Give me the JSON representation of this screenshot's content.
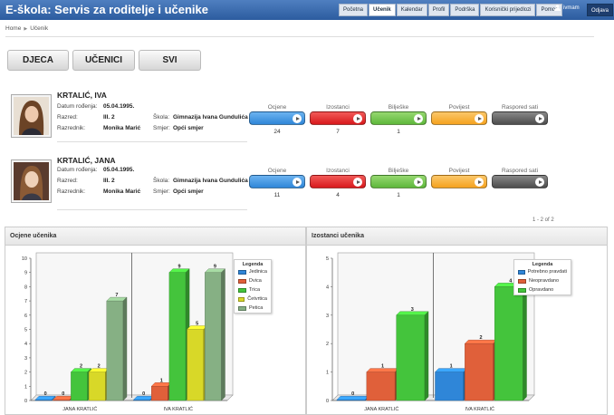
{
  "header": {
    "title": "E-škola: Servis za roditelje i učenike",
    "tabs": [
      {
        "label": "Početna",
        "active": false
      },
      {
        "label": "Učenik",
        "active": true
      },
      {
        "label": "Kalendar",
        "active": false
      },
      {
        "label": "Profil",
        "active": false
      },
      {
        "label": "Podrška",
        "active": false
      },
      {
        "label": "Korisnički prijedlozi",
        "active": false
      },
      {
        "label": "Pomoć",
        "active": false
      }
    ],
    "user": "ivmam",
    "user_icon": "user-icon",
    "logout": "Odjava"
  },
  "breadcrumb": {
    "home": "Home",
    "current": "Učenik"
  },
  "filters": [
    "DJECA",
    "UČENICI",
    "SVI"
  ],
  "labels": {
    "datum": "Datum rođenja:",
    "razred": "Razred:",
    "razrednik": "Razrednik:",
    "skola": "Škola:",
    "smjer": "Smjer:"
  },
  "actions": [
    {
      "label": "Ocjene",
      "color": "#2f86d8"
    },
    {
      "label": "Izostanci",
      "color": "#d8191c"
    },
    {
      "label": "Bilješke",
      "color": "#5eb73b"
    },
    {
      "label": "Povijest",
      "color": "#f5a21e"
    },
    {
      "label": "Raspored sati",
      "color": "#4d4d4d"
    }
  ],
  "students": [
    {
      "name": "KRTALIĆ, IVA",
      "dob": "05.04.1995.",
      "razred": "III. 2",
      "razrednik": "Monika Marić",
      "skola": "Gimnazija Ivana Gundulića",
      "smjer": "Opći smjer",
      "counts": [
        "24",
        "7",
        "1",
        "",
        ""
      ]
    },
    {
      "name": "KRTALIĆ, JANA",
      "dob": "05.04.1995.",
      "razred": "III. 2",
      "razrednik": "Monika Marić",
      "skola": "Gimnazija Ivana Gundulića",
      "smjer": "Opći smjer",
      "counts": [
        "11",
        "4",
        "1",
        "",
        ""
      ]
    }
  ],
  "pager": "1 - 2 of 2",
  "chart_data": [
    {
      "type": "bar",
      "title": "Ocjene učenika",
      "categories": [
        "JANA KRATLIĆ",
        "IVA KRATLIĆ"
      ],
      "ylim": [
        0,
        10
      ],
      "legend_title": "Legenda",
      "series": [
        {
          "name": "Jedinica",
          "values": [
            0,
            0
          ],
          "color": "#2f86d8"
        },
        {
          "name": "Dvica",
          "values": [
            0,
            1
          ],
          "color": "#e0603a"
        },
        {
          "name": "Trica",
          "values": [
            2,
            9
          ],
          "color": "#44c43c"
        },
        {
          "name": "Četvrtica",
          "values": [
            2,
            5
          ],
          "color": "#d8d828"
        },
        {
          "name": "Petica",
          "values": [
            7,
            9
          ],
          "color": "#86b084"
        }
      ]
    },
    {
      "type": "bar",
      "title": "Izostanci učenika",
      "categories": [
        "JANA KRATLIĆ",
        "IVA KRATLIĆ"
      ],
      "ylim": [
        0,
        5
      ],
      "legend_title": "Legenda",
      "series": [
        {
          "name": "Potrebno pravdati",
          "values": [
            0,
            1
          ],
          "color": "#2f86d8"
        },
        {
          "name": "Neopravdano",
          "values": [
            1,
            2
          ],
          "color": "#e0603a"
        },
        {
          "name": "Opravdano",
          "values": [
            3,
            4
          ],
          "color": "#44c43c"
        }
      ]
    }
  ]
}
